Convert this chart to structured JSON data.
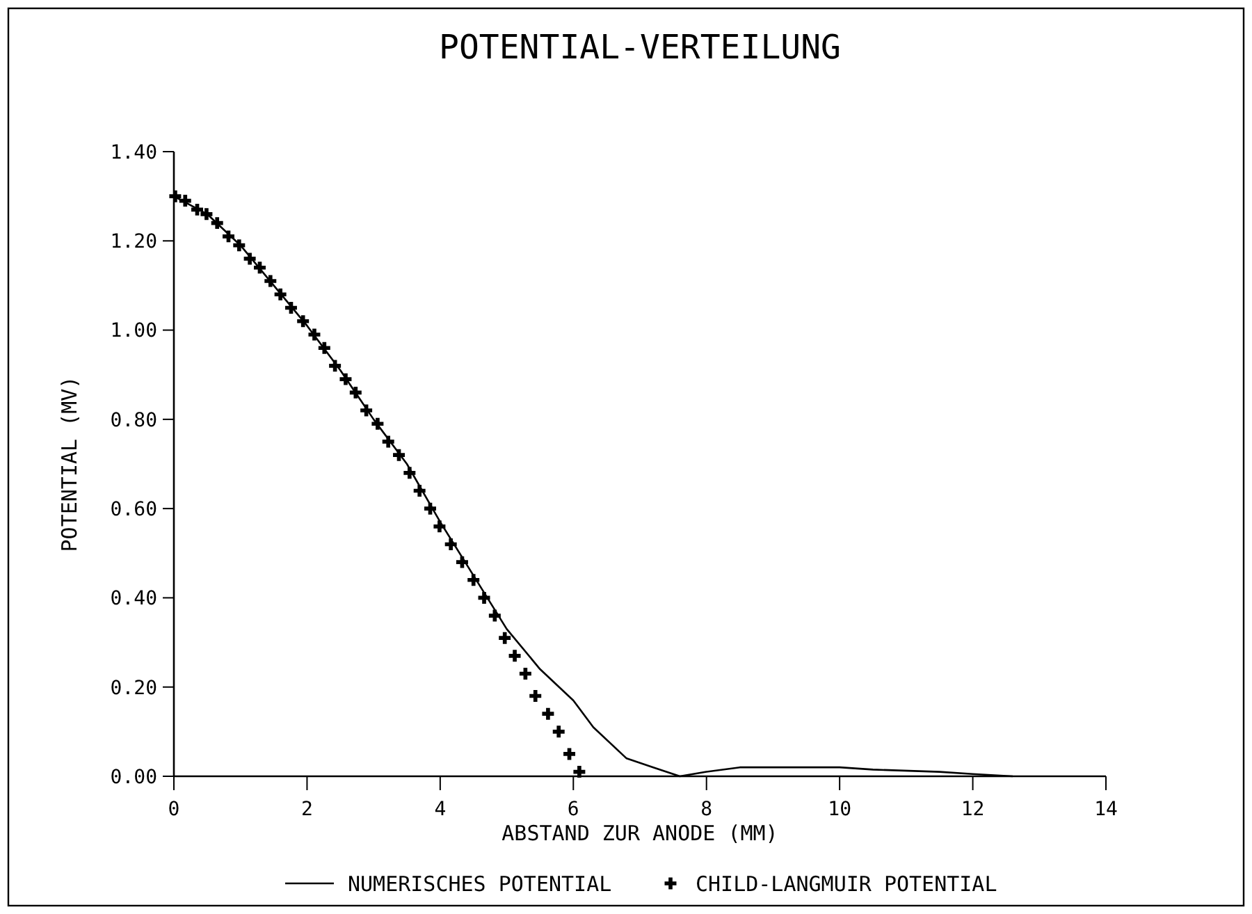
{
  "chart_data": {
    "type": "line",
    "title": "POTENTIAL-VERTEILUNG",
    "xlabel": "ABSTAND ZUR ANODE (MM)",
    "ylabel": "POTENTIAL  (MV)",
    "xlim": [
      0,
      14
    ],
    "xticks": [
      0,
      2,
      4,
      6,
      8,
      10,
      12,
      14
    ],
    "ylim": [
      0,
      1.4
    ],
    "yticks": [
      {
        "value": 0,
        "label": "0.00"
      },
      {
        "value": 0.2,
        "label": "0.20"
      },
      {
        "value": 0.4,
        "label": "0.40"
      },
      {
        "value": 0.6,
        "label": "0.60"
      },
      {
        "value": 0.8,
        "label": "0.80"
      },
      {
        "value": 1,
        "label": "1.00"
      },
      {
        "value": 1.2,
        "label": "1.20"
      },
      {
        "value": 1.4,
        "label": "1.40"
      }
    ],
    "grid": false,
    "legend": "bottom",
    "series": [
      {
        "name": "NUMERISCHES POTENTIAL",
        "color": "#000000",
        "marker": "none",
        "line_style": "solid",
        "x": [
          0,
          0.5,
          1,
          1.5,
          2,
          2.5,
          3,
          3.5,
          4,
          4.5,
          5,
          5.5,
          6,
          6.3,
          6.8,
          7.2,
          7.6,
          8,
          8.5,
          10,
          10.5,
          11.5,
          12,
          12.6
        ],
        "values": [
          1.3,
          1.26,
          1.19,
          1.1,
          1.01,
          0.91,
          0.8,
          0.7,
          0.57,
          0.45,
          0.33,
          0.24,
          0.17,
          0.11,
          0.04,
          0.02,
          0,
          0.01,
          0.02,
          0.02,
          0.015,
          0.01,
          0.005,
          0
        ]
      },
      {
        "name": "CHILD-LANGMUIR POTENTIAL",
        "type": "scatter",
        "color": "#000000",
        "marker": "cross",
        "x": [
          0.02,
          0.17,
          0.35,
          0.49,
          0.65,
          0.82,
          0.98,
          1.14,
          1.29,
          1.45,
          1.6,
          1.76,
          1.94,
          2.11,
          2.26,
          2.42,
          2.58,
          2.73,
          2.89,
          3.06,
          3.22,
          3.38,
          3.54,
          3.69,
          3.85,
          3.99,
          4.16,
          4.33,
          4.5,
          4.66,
          4.82,
          4.97,
          5.12,
          5.28,
          5.43,
          5.62,
          5.78,
          5.94,
          6.09
        ],
        "values": [
          1.3,
          1.29,
          1.27,
          1.26,
          1.24,
          1.21,
          1.19,
          1.16,
          1.14,
          1.11,
          1.08,
          1.05,
          1.02,
          0.99,
          0.96,
          0.92,
          0.89,
          0.86,
          0.82,
          0.79,
          0.75,
          0.72,
          0.68,
          0.64,
          0.6,
          0.56,
          0.52,
          0.48,
          0.44,
          0.4,
          0.36,
          0.31,
          0.27,
          0.23,
          0.18,
          0.14,
          0.1,
          0.05,
          0.01
        ]
      }
    ]
  }
}
